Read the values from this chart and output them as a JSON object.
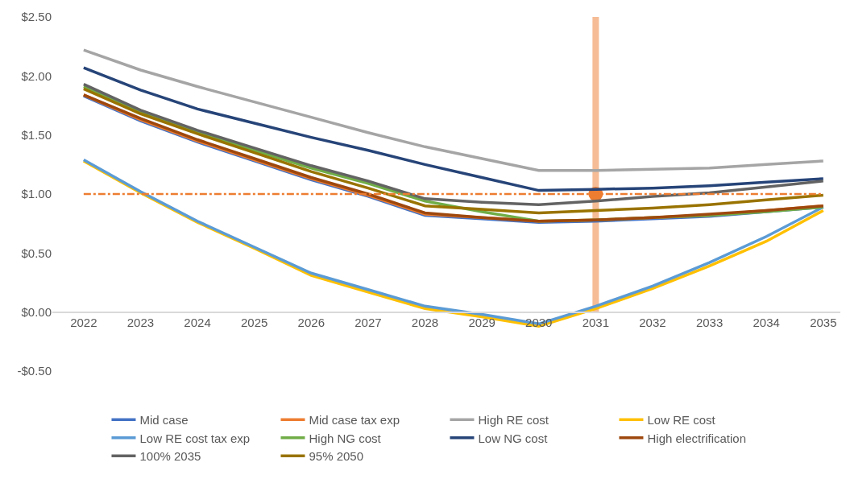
{
  "chart_data": {
    "type": "line",
    "categories": [
      "2022",
      "2023",
      "2024",
      "2025",
      "2026",
      "2027",
      "2028",
      "2029",
      "2030",
      "2031",
      "2032",
      "2033",
      "2034",
      "2035"
    ],
    "ylim": [
      -0.5,
      2.5
    ],
    "yticks": [
      {
        "value": -0.5,
        "label": "-$0.50"
      },
      {
        "value": 0,
        "label": "$0.00"
      },
      {
        "value": 0.5,
        "label": "$0.50"
      },
      {
        "value": 1,
        "label": "$1.00"
      },
      {
        "value": 1.5,
        "label": "$1.50"
      },
      {
        "value": 2,
        "label": "$2.00"
      },
      {
        "value": 2.5,
        "label": "$2.50"
      }
    ],
    "grid": false,
    "legend": "bottom",
    "line_style": "solid",
    "series": [
      {
        "name": "Mid case",
        "color": "#4472c4",
        "values": [
          1.83,
          1.62,
          1.44,
          1.28,
          1.12,
          0.98,
          0.82,
          0.79,
          0.76,
          0.77,
          0.79,
          0.81,
          0.85,
          0.89
        ]
      },
      {
        "name": "Mid case tax exp",
        "color": "#ed7d31",
        "values": [
          1.84,
          1.63,
          1.45,
          1.29,
          1.13,
          0.99,
          0.83,
          0.8,
          0.77,
          0.78,
          0.8,
          0.82,
          0.86,
          0.9
        ]
      },
      {
        "name": "High RE cost",
        "color": "#a5a5a5",
        "values": [
          2.22,
          2.05,
          1.91,
          1.78,
          1.65,
          1.52,
          1.4,
          1.3,
          1.2,
          1.2,
          1.21,
          1.22,
          1.25,
          1.28
        ]
      },
      {
        "name": "Low RE cost",
        "color": "#ffc000",
        "values": [
          1.28,
          1.01,
          0.76,
          0.54,
          0.31,
          0.17,
          0.03,
          -0.04,
          -0.12,
          0.03,
          0.2,
          0.39,
          0.6,
          0.86
        ]
      },
      {
        "name": "Low RE cost tax exp",
        "color": "#5b9bd5",
        "values": [
          1.29,
          1.02,
          0.77,
          0.55,
          0.33,
          0.19,
          0.05,
          -0.02,
          -0.1,
          0.05,
          0.22,
          0.42,
          0.64,
          0.89
        ]
      },
      {
        "name": "High NG cost",
        "color": "#70ad47",
        "values": [
          1.91,
          1.7,
          1.53,
          1.37,
          1.22,
          1.09,
          0.94,
          0.85,
          0.77,
          0.78,
          0.8,
          0.82,
          0.85,
          0.89
        ]
      },
      {
        "name": "Low NG cost",
        "color": "#264478",
        "values": [
          2.07,
          1.88,
          1.72,
          1.6,
          1.48,
          1.37,
          1.25,
          1.14,
          1.03,
          1.04,
          1.05,
          1.07,
          1.1,
          1.13
        ]
      },
      {
        "name": "High electrification",
        "color": "#9e480e",
        "values": [
          1.84,
          1.64,
          1.46,
          1.3,
          1.14,
          1.0,
          0.84,
          0.8,
          0.77,
          0.78,
          0.8,
          0.83,
          0.86,
          0.9
        ]
      },
      {
        "name": "100% 2035",
        "color": "#636363",
        "values": [
          1.93,
          1.71,
          1.54,
          1.39,
          1.24,
          1.11,
          0.96,
          0.93,
          0.91,
          0.94,
          0.98,
          1.01,
          1.06,
          1.11
        ]
      },
      {
        "name": "95% 2050",
        "color": "#997300",
        "values": [
          1.89,
          1.68,
          1.51,
          1.35,
          1.19,
          1.05,
          0.9,
          0.87,
          0.84,
          0.86,
          0.88,
          0.91,
          0.95,
          0.99
        ]
      },
      {
        "type": "scatter",
        "marker": "circle",
        "color": "#ed7d31",
        "values": [
          null,
          null,
          null,
          null,
          null,
          null,
          null,
          null,
          null,
          1.0,
          null,
          null,
          null,
          null
        ]
      }
    ],
    "ref_lines": [
      {
        "axis": "y",
        "value": 1.0,
        "color": "#ed7d31",
        "line_style": "dashdot"
      },
      {
        "axis": "x",
        "value": "2031",
        "color": "#f4b183",
        "line_style": "solid"
      }
    ]
  }
}
